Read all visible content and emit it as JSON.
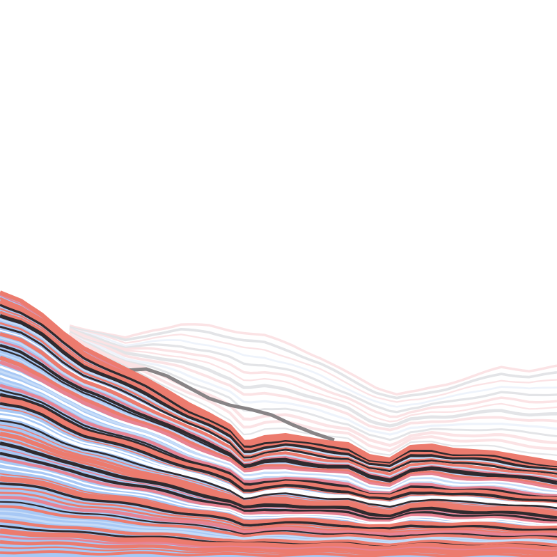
{
  "artwork": {
    "kind": "generative layered ridge lines",
    "palette": {
      "background": "#ffffff",
      "fill_blue": "#a7c8f5",
      "light_blue": "#c6dcf8",
      "coral": "#ec7b6e",
      "pink": "#e78393",
      "charcoal": "#2f2a2e",
      "grey": "#888486",
      "white": "#ffffff",
      "faint_pink": "#fbe3e5",
      "faint_grey": "#e3e4e7",
      "pale_blue": "#eef3fb"
    }
  }
}
